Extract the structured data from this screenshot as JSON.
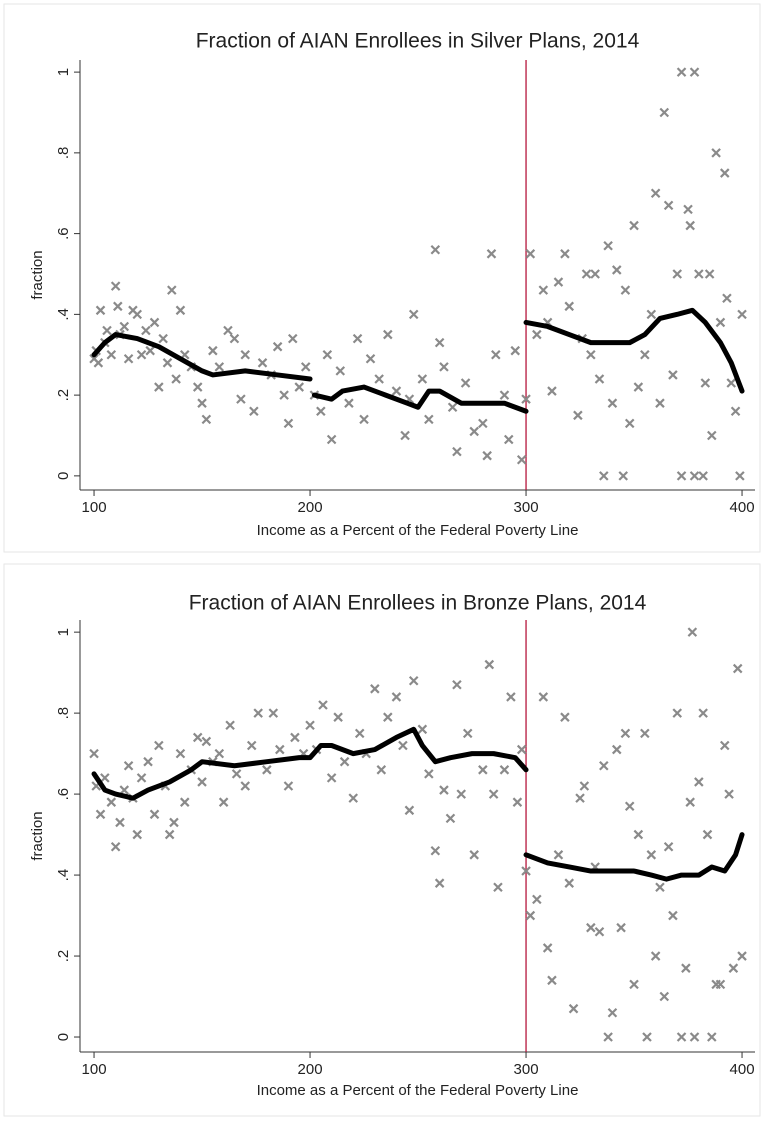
{
  "chart_data": [
    {
      "type": "scatter",
      "title": "Fraction of AIAN Enrollees in Silver Plans, 2014",
      "xlabel": "Income as a Percent of the Federal Poverty Line",
      "ylabel": "fraction",
      "color": "#8a8a8a",
      "x": [
        100,
        101,
        102,
        103,
        105,
        106,
        108,
        110,
        111,
        112,
        114,
        116,
        118,
        120,
        122,
        124,
        126,
        128,
        130,
        132,
        134,
        136,
        138,
        140,
        142,
        145,
        148,
        150,
        152,
        155,
        158,
        162,
        165,
        168,
        170,
        174,
        178,
        182,
        185,
        188,
        190,
        192,
        195,
        198,
        202,
        205,
        208,
        210,
        214,
        218,
        222,
        225,
        228,
        232,
        236,
        240,
        244,
        246,
        248,
        252,
        255,
        258,
        260,
        262,
        266,
        268,
        272,
        276,
        280,
        282,
        284,
        286,
        290,
        292,
        295,
        298,
        300,
        302,
        305,
        308,
        310,
        312,
        315,
        318,
        320,
        324,
        326,
        328,
        330,
        332,
        334,
        336,
        338,
        340,
        342,
        345,
        346,
        348,
        350,
        352,
        355,
        358,
        360,
        362,
        364,
        366,
        368,
        370,
        372,
        372,
        375,
        376,
        378,
        378,
        380,
        382,
        383,
        385,
        386,
        388,
        390,
        392,
        393,
        395,
        397,
        399,
        400
      ],
      "values": [
        0.29,
        0.31,
        0.28,
        0.41,
        0.33,
        0.36,
        0.3,
        0.47,
        0.42,
        0.35,
        0.37,
        0.29,
        0.41,
        0.4,
        0.3,
        0.36,
        0.31,
        0.38,
        0.22,
        0.34,
        0.28,
        0.46,
        0.24,
        0.41,
        0.3,
        0.27,
        0.22,
        0.18,
        0.14,
        0.31,
        0.27,
        0.36,
        0.34,
        0.19,
        0.3,
        0.16,
        0.28,
        0.25,
        0.32,
        0.2,
        0.13,
        0.34,
        0.22,
        0.27,
        0.2,
        0.16,
        0.3,
        0.09,
        0.26,
        0.18,
        0.34,
        0.14,
        0.29,
        0.24,
        0.35,
        0.21,
        0.1,
        0.19,
        0.4,
        0.24,
        0.14,
        0.56,
        0.33,
        0.27,
        0.17,
        0.06,
        0.23,
        0.11,
        0.13,
        0.05,
        0.55,
        0.3,
        0.2,
        0.09,
        0.31,
        0.04,
        0.19,
        0.55,
        0.35,
        0.46,
        0.38,
        0.21,
        0.48,
        0.55,
        0.42,
        0.15,
        0.34,
        0.5,
        0.3,
        0.5,
        0.24,
        0,
        0.57,
        0.18,
        0.51,
        0,
        0.46,
        0.13,
        0.62,
        0.22,
        0.3,
        0.4,
        0.7,
        0.18,
        0.9,
        0.67,
        0.25,
        0.5,
        1,
        0,
        0.66,
        0.62,
        1,
        0,
        0.5,
        0,
        0.23,
        0.5,
        0.1,
        0.8,
        0.38,
        0.75,
        0.44,
        0.23,
        0.16,
        0,
        0.4
      ],
      "fit": {
        "color": "#000000",
        "x": [
          100,
          105,
          110,
          120,
          130,
          140,
          150,
          155,
          170,
          185,
          200,
          null,
          202,
          210,
          215,
          225,
          235,
          245,
          250,
          255,
          260,
          270,
          280,
          290,
          300,
          null,
          300,
          310,
          320,
          330,
          340,
          348,
          355,
          362,
          370,
          377,
          383,
          390,
          395,
          400
        ],
        "values": [
          0.3,
          0.33,
          0.35,
          0.34,
          0.32,
          0.29,
          0.26,
          0.25,
          0.26,
          0.25,
          0.24,
          null,
          0.2,
          0.19,
          0.21,
          0.22,
          0.2,
          0.18,
          0.17,
          0.21,
          0.21,
          0.18,
          0.18,
          0.18,
          0.16,
          null,
          0.38,
          0.37,
          0.35,
          0.33,
          0.33,
          0.33,
          0.35,
          0.39,
          0.4,
          0.41,
          0.38,
          0.33,
          0.28,
          0.21
        ]
      },
      "cutoff": {
        "x": 300,
        "color": "#b5173c"
      },
      "xlim": [
        93.5,
        406
      ],
      "ylim": [
        -0.035,
        1.03
      ],
      "xticks": [
        100,
        200,
        300,
        400
      ],
      "yticks": [
        0,
        {
          "value": 0.2,
          "label": ".2"
        },
        {
          "value": 0.4,
          "label": ".4"
        },
        {
          "value": 0.6,
          "label": ".6"
        },
        {
          "value": 0.8,
          "label": ".8"
        },
        1
      ]
    },
    {
      "type": "scatter",
      "title": "Fraction of AIAN Enrollees in Bronze Plans, 2014",
      "xlabel": "Income as a Percent of the Federal Poverty Line",
      "ylabel": "fraction",
      "color": "#8a8a8a",
      "x": [
        100,
        101,
        103,
        105,
        108,
        110,
        112,
        114,
        116,
        118,
        120,
        122,
        125,
        128,
        130,
        133,
        135,
        137,
        140,
        142,
        145,
        148,
        150,
        152,
        155,
        158,
        160,
        163,
        166,
        170,
        173,
        176,
        180,
        183,
        186,
        190,
        193,
        197,
        200,
        203,
        206,
        210,
        213,
        216,
        220,
        223,
        226,
        230,
        233,
        236,
        240,
        243,
        246,
        248,
        252,
        255,
        258,
        260,
        262,
        265,
        268,
        270,
        273,
        276,
        280,
        283,
        285,
        287,
        290,
        293,
        296,
        298,
        300,
        302,
        305,
        308,
        310,
        312,
        315,
        318,
        320,
        322,
        325,
        327,
        330,
        332,
        334,
        336,
        338,
        340,
        342,
        344,
        346,
        348,
        350,
        352,
        355,
        356,
        358,
        360,
        362,
        364,
        366,
        368,
        370,
        372,
        374,
        376,
        377,
        378,
        380,
        382,
        384,
        386,
        388,
        390,
        392,
        394,
        396,
        398,
        400
      ],
      "values": [
        0.7,
        0.62,
        0.55,
        0.64,
        0.58,
        0.47,
        0.53,
        0.61,
        0.67,
        0.59,
        0.5,
        0.64,
        0.68,
        0.55,
        0.72,
        0.62,
        0.5,
        0.53,
        0.7,
        0.58,
        0.66,
        0.74,
        0.63,
        0.73,
        0.68,
        0.7,
        0.58,
        0.77,
        0.65,
        0.62,
        0.72,
        0.8,
        0.66,
        0.8,
        0.71,
        0.62,
        0.74,
        0.7,
        0.77,
        0.71,
        0.82,
        0.64,
        0.79,
        0.68,
        0.59,
        0.75,
        0.7,
        0.86,
        0.66,
        0.79,
        0.84,
        0.72,
        0.56,
        0.88,
        0.76,
        0.65,
        0.46,
        0.38,
        0.61,
        0.54,
        0.87,
        0.6,
        0.75,
        0.45,
        0.66,
        0.92,
        0.6,
        0.37,
        0.66,
        0.84,
        0.58,
        0.71,
        0.41,
        0.3,
        0.34,
        0.84,
        0.22,
        0.14,
        0.45,
        0.79,
        0.38,
        0.07,
        0.59,
        0.62,
        0.27,
        0.42,
        0.26,
        0.67,
        0,
        0.06,
        0.71,
        0.27,
        0.75,
        0.57,
        0.13,
        0.5,
        0.75,
        0,
        0.45,
        0.2,
        0.37,
        0.1,
        0.47,
        0.3,
        0.8,
        0,
        0.17,
        0.58,
        1,
        0,
        0.63,
        0.8,
        0.5,
        0,
        0.13,
        0.13,
        0.72,
        0.6,
        0.17,
        0.91,
        0.2
      ],
      "fit": {
        "color": "#000000",
        "x": [
          100,
          105,
          110,
          118,
          125,
          135,
          145,
          150,
          165,
          180,
          195,
          200,
          205,
          210,
          220,
          230,
          240,
          248,
          252,
          258,
          265,
          275,
          285,
          295,
          300,
          null,
          300,
          310,
          320,
          330,
          340,
          350,
          358,
          365,
          372,
          380,
          386,
          392,
          397,
          400
        ],
        "values": [
          0.65,
          0.61,
          0.6,
          0.59,
          0.61,
          0.63,
          0.66,
          0.68,
          0.67,
          0.68,
          0.69,
          0.69,
          0.72,
          0.72,
          0.7,
          0.71,
          0.74,
          0.76,
          0.72,
          0.68,
          0.69,
          0.7,
          0.7,
          0.69,
          0.66,
          null,
          0.45,
          0.43,
          0.42,
          0.41,
          0.41,
          0.41,
          0.4,
          0.39,
          0.4,
          0.4,
          0.42,
          0.41,
          0.45,
          0.5
        ]
      },
      "cutoff": {
        "x": 300,
        "color": "#b5173c"
      },
      "xlim": [
        93.5,
        406
      ],
      "ylim": [
        -0.037,
        1.03
      ],
      "xticks": [
        100,
        200,
        300,
        400
      ],
      "yticks": [
        0,
        {
          "value": 0.2,
          "label": ".2"
        },
        {
          "value": 0.4,
          "label": ".4"
        },
        {
          "value": 0.6,
          "label": ".6"
        },
        {
          "value": 0.8,
          "label": ".8"
        },
        1
      ]
    }
  ]
}
